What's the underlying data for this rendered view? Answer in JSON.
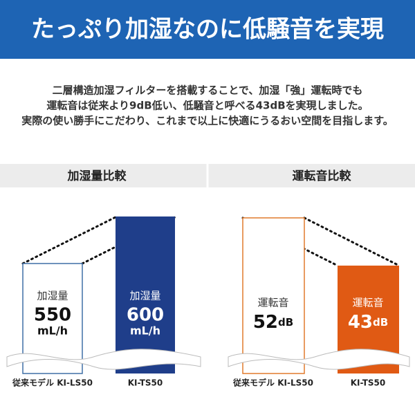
{
  "header": {
    "title": "たっぷり加湿なのに低騒音を実現"
  },
  "intro": {
    "lines": [
      "二層構造加湿フィルターを搭載することで、加湿「強」運転時でも",
      "運転音は従来より9dB低い、低騒音と呼べる43dBを実現しました。",
      "実際の使い勝手にこだわり、これまで以上に快適にうるおい空間を目指します。"
    ]
  },
  "panels": [
    {
      "title": "加湿量比較",
      "items": [
        {
          "label": "加湿量",
          "value": 550,
          "unit": "mL/h",
          "model": "従来モデル KI-LS50"
        },
        {
          "label": "加湿量",
          "value": 600,
          "unit": "mL/h",
          "model": "KI-TS50"
        }
      ]
    },
    {
      "title": "運転音比較",
      "items": [
        {
          "label": "運転音",
          "value": 52,
          "unit": "dB",
          "model": "従来モデル KI-LS50"
        },
        {
          "label": "運転音",
          "value": 43,
          "unit": "dB",
          "model": "KI-TS50"
        }
      ]
    }
  ]
}
